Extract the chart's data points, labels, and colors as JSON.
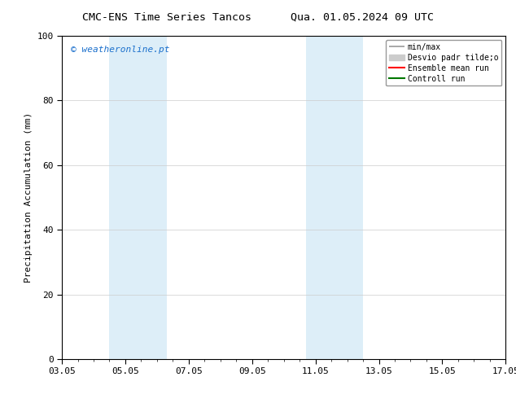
{
  "title_left": "CMC-ENS Time Series Tancos",
  "title_right": "Qua. 01.05.2024 09 UTC",
  "ylabel": "Precipitation Accumulation (mm)",
  "xlim_numeric": [
    0,
    14
  ],
  "ylim": [
    0,
    100
  ],
  "yticks": [
    0,
    20,
    40,
    60,
    80,
    100
  ],
  "xticks_labels": [
    "03.05",
    "05.05",
    "07.05",
    "09.05",
    "11.05",
    "13.05",
    "15.05",
    "17.05"
  ],
  "xticks_pos": [
    0,
    2,
    4,
    6,
    8,
    10,
    12,
    14
  ],
  "shaded_bands": [
    {
      "x_start": 1.5,
      "x_end": 3.3
    },
    {
      "x_start": 7.7,
      "x_end": 9.5
    }
  ],
  "band_color": "#ddeef8",
  "watermark_text": "© weatheronline.pt",
  "watermark_color": "#1a6fcc",
  "background_color": "#ffffff",
  "legend_label_minmax": "min/max",
  "legend_label_desvio": "Desvio padr tilde;o",
  "legend_label_ensemble": "Ensemble mean run",
  "legend_label_control": "Controll run",
  "color_minmax": "#999999",
  "color_desvio": "#cccccc",
  "color_ensemble": "#ff0000",
  "color_control": "#007700",
  "fig_width": 6.34,
  "fig_height": 4.9,
  "dpi": 100
}
